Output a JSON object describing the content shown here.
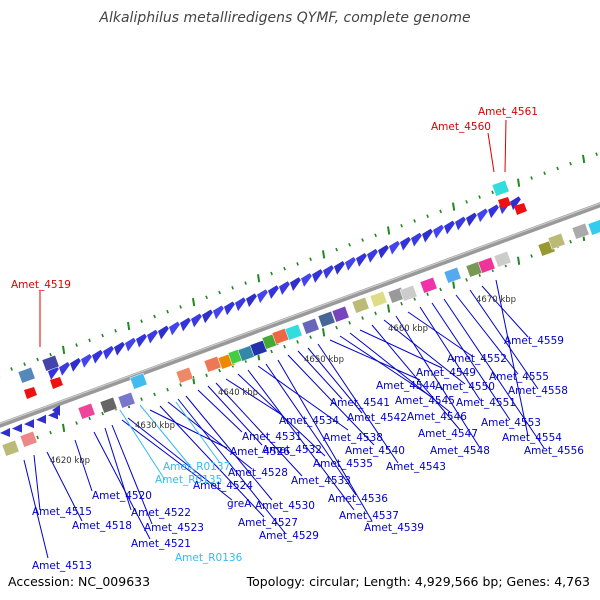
{
  "title": "Alkaliphilus metalliredigens QYMF, complete genome",
  "footer": {
    "accession": "Accession: NC_009633",
    "summary": "Topology: circular; Length: 4,929,566 bp; Genes: 4,763"
  },
  "colors": {
    "gene_label": "#0000cc",
    "rna_label": "#33bbee",
    "highlight_label": "#dd0000",
    "backbone": "#888888",
    "tick": "#228822"
  },
  "kbp_marks": [
    "4620 kbp",
    "4630 kbp",
    "4640 kbp",
    "4650 kbp",
    "4660 kbp",
    "4670 kbp"
  ],
  "labels": {
    "red": [
      "Amet_4519",
      "Amet_4560",
      "Amet_4561"
    ],
    "cyan": [
      "Amet_R0137",
      "Amet_R0135",
      "Amet_R0136"
    ],
    "blue": [
      "Amet_4513",
      "Amet_4515",
      "Amet_4518",
      "Amet_4520",
      "Amet_4521",
      "Amet_4522",
      "Amet_4523",
      "Amet_4524",
      "greA",
      "Amet_4526",
      "Amet_4527",
      "Amet_4528",
      "Amet_4529",
      "Amet_4530",
      "Amet_4531",
      "Amet_4532",
      "Amet_4533",
      "Amet_4534",
      "Amet_4535",
      "Amet_4536",
      "Amet_4537",
      "Amet_4538",
      "Amet_4539",
      "Amet_4540",
      "Amet_4541",
      "Amet_4542",
      "Amet_4543",
      "Amet_4544",
      "Amet_4545",
      "Amet_4546",
      "Amet_4547",
      "Amet_4548",
      "Amet_4549",
      "Amet_4550",
      "Amet_4551",
      "Amet_4552",
      "Amet_4553",
      "Amet_4554",
      "Amet_4555",
      "Amet_4556",
      "Amet_4558",
      "Amet_4559"
    ]
  }
}
